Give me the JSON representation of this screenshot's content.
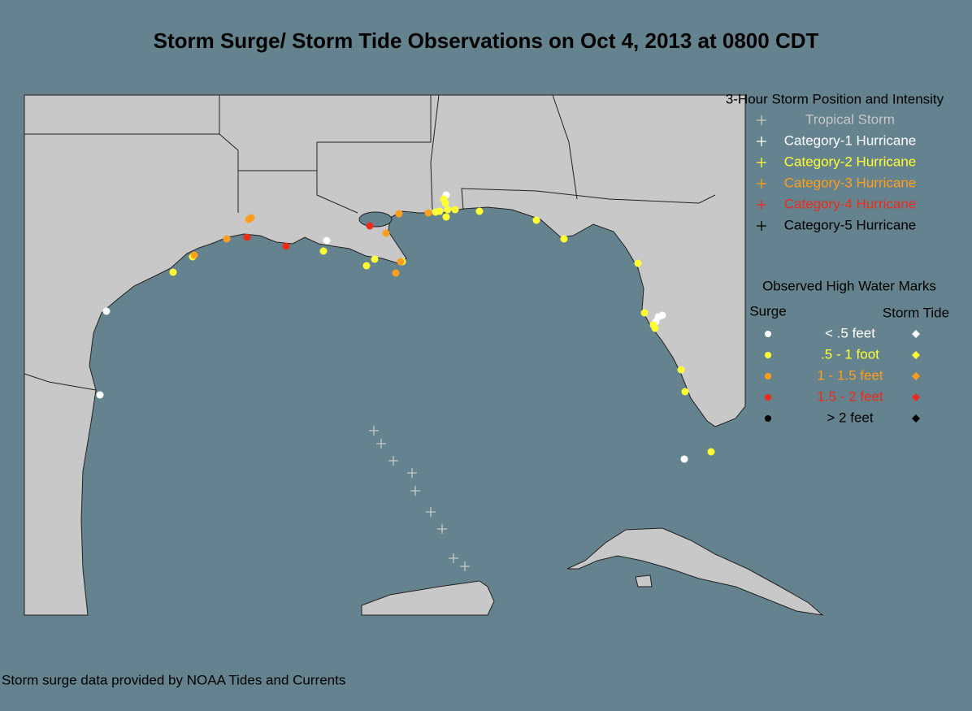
{
  "title": "Storm Surge/ Storm Tide Observations on Oct 4, 2013 at 0800 CDT",
  "storm_legend": {
    "title": "3-Hour Storm Position and Intensity",
    "items": [
      {
        "label": "Tropical Storm",
        "color": "#c8c8c8"
      },
      {
        "label": "Category-1 Hurricane",
        "color": "#ffffff"
      },
      {
        "label": "Category-2 Hurricane",
        "color": "#ffff33"
      },
      {
        "label": "Category-3 Hurricane",
        "color": "#ff9e1a"
      },
      {
        "label": "Category-4 Hurricane",
        "color": "#ee2a1a"
      },
      {
        "label": "Category-5 Hurricane",
        "color": "#000000"
      }
    ]
  },
  "water_legend": {
    "title": "Observed High Water Marks",
    "surge_header": "Surge",
    "tide_header": "Storm Tide",
    "items": [
      {
        "label": "< .5 feet",
        "color": "#ffffff"
      },
      {
        "label": ".5 - 1 foot",
        "color": "#ffff33"
      },
      {
        "label": "1 - 1.5 feet",
        "color": "#ff9e1a"
      },
      {
        "label": "1.5 - 2 feet",
        "color": "#ee2a1a"
      },
      {
        "label": "> 2 feet",
        "color": "#000000"
      }
    ]
  },
  "footer": "Storm surge data provided by NOAA Tides and Currents"
}
